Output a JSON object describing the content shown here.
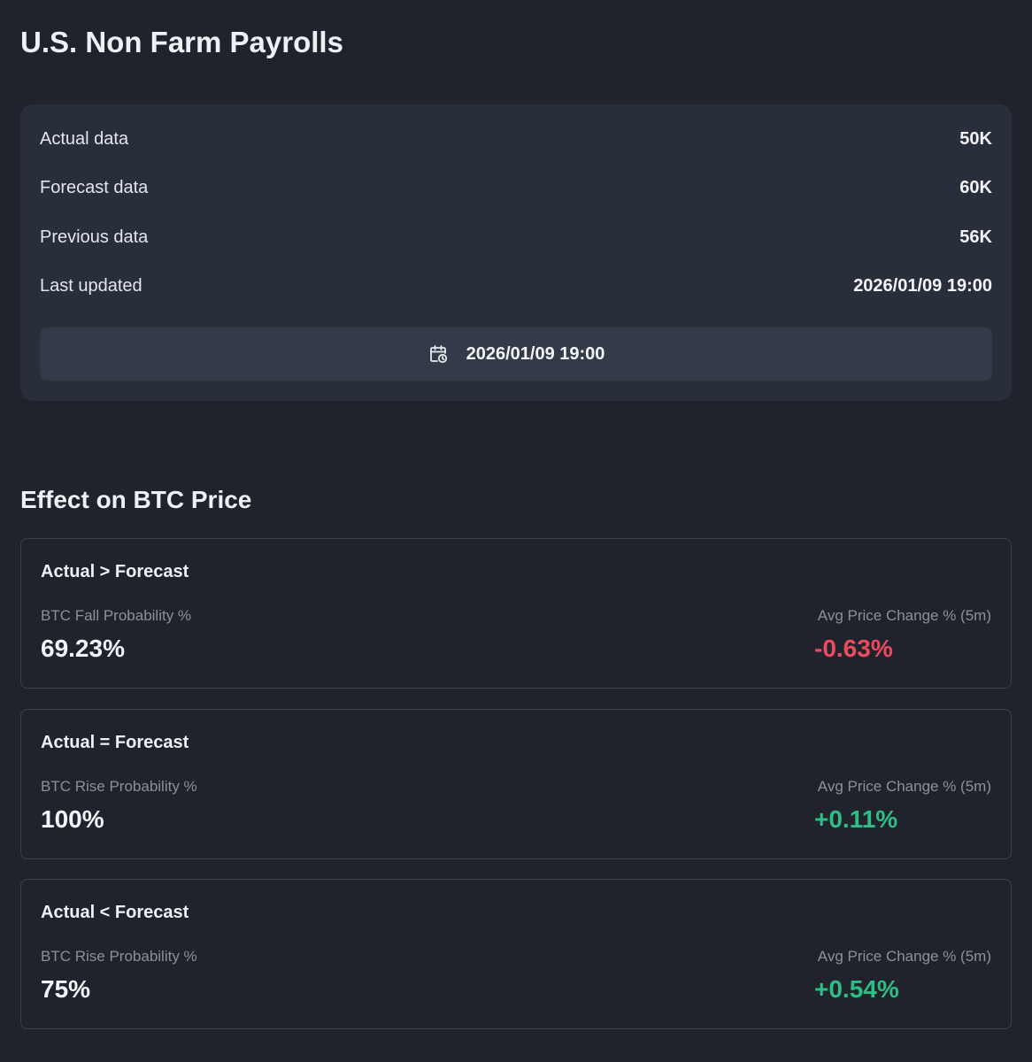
{
  "header": {
    "title": "U.S. Non Farm Payrolls"
  },
  "summary": {
    "rows": [
      {
        "label": "Actual data",
        "value": "50K"
      },
      {
        "label": "Forecast data",
        "value": "60K"
      },
      {
        "label": "Previous data",
        "value": "56K"
      },
      {
        "label": "Last updated",
        "value": "2026/01/09 19:00"
      }
    ],
    "date_button": {
      "icon": "calendar-clock-icon",
      "label": "2026/01/09 19:00"
    }
  },
  "effect": {
    "title": "Effect on BTC Price",
    "cards": [
      {
        "heading": "Actual > Forecast",
        "prob_label": "BTC Fall Probability %",
        "prob_value": "69.23%",
        "change_label": "Avg Price Change % (5m)",
        "change_value": "-0.63%",
        "change_color": "#ea4b5f"
      },
      {
        "heading": "Actual = Forecast",
        "prob_label": "BTC Rise Probability %",
        "prob_value": "100%",
        "change_label": "Avg Price Change % (5m)",
        "change_value": "+0.11%",
        "change_color": "#2ebd85"
      },
      {
        "heading": "Actual < Forecast",
        "prob_label": "BTC Rise Probability %",
        "prob_value": "75%",
        "change_label": "Avg Price Change % (5m)",
        "change_value": "+0.54%",
        "change_color": "#2ebd85"
      }
    ]
  },
  "colors": {
    "background": "#20232c",
    "card": "#282e3a",
    "button": "#343b48",
    "negative": "#ea4b5f",
    "positive": "#2ebd85"
  }
}
